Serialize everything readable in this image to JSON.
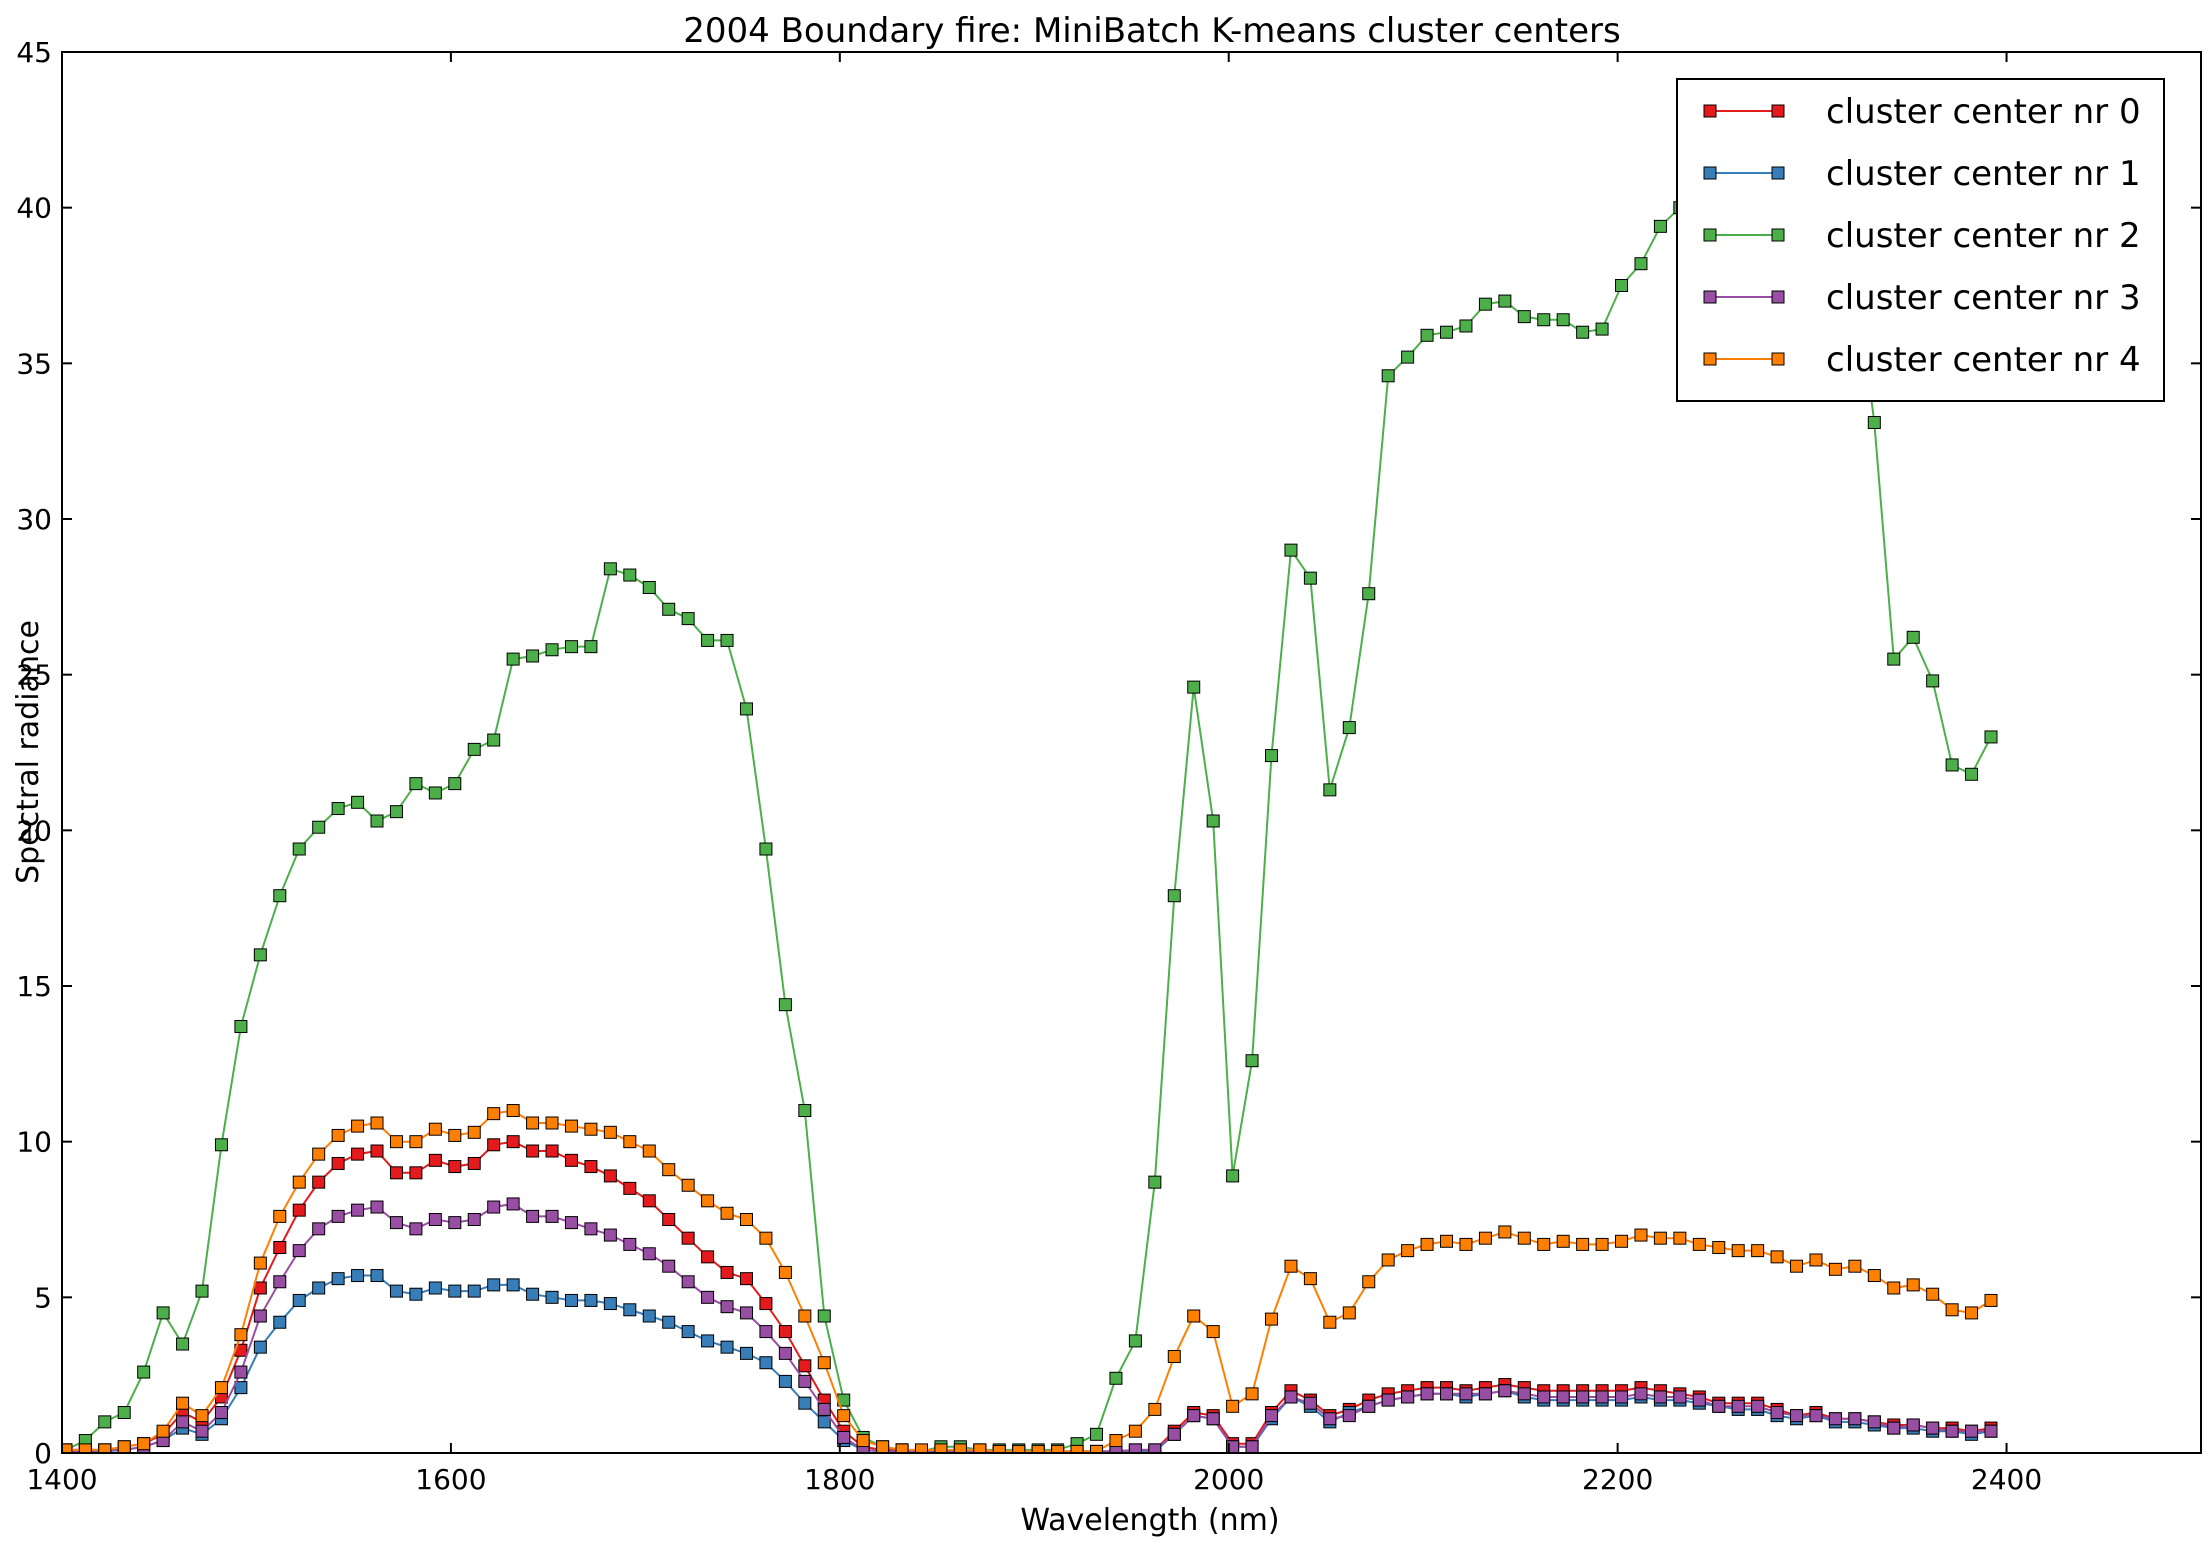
{
  "chart_data": {
    "type": "line",
    "title": "2004 Boundary fire: MiniBatch K-means cluster centers",
    "xlabel": "Wavelength (nm)",
    "ylabel": "Spectral radiance",
    "xlim": [
      1400,
      2500
    ],
    "ylim": [
      0,
      45
    ],
    "xticks": [
      "1400",
      "1600",
      "1800",
      "2000",
      "2200",
      "2400"
    ],
    "yticks": [
      "0",
      "5",
      "10",
      "15",
      "20",
      "25",
      "30",
      "35",
      "40",
      "45"
    ],
    "grid": false,
    "legend_position": "top-right",
    "marker": "square",
    "x": [
      1402,
      1412,
      1422,
      1432,
      1442,
      1452,
      1462,
      1472,
      1482,
      1492,
      1502,
      1512,
      1522,
      1532,
      1542,
      1552,
      1562,
      1572,
      1582,
      1592,
      1602,
      1612,
      1622,
      1632,
      1642,
      1652,
      1662,
      1672,
      1682,
      1692,
      1702,
      1712,
      1722,
      1732,
      1742,
      1752,
      1762,
      1772,
      1782,
      1792,
      1802,
      1812,
      1822,
      1832,
      1842,
      1852,
      1862,
      1872,
      1882,
      1892,
      1902,
      1912,
      1922,
      1932,
      1942,
      1952,
      1962,
      1972,
      1982,
      1992,
      2002,
      2012,
      2022,
      2032,
      2042,
      2052,
      2062,
      2072,
      2082,
      2092,
      2102,
      2112,
      2122,
      2132,
      2142,
      2152,
      2162,
      2172,
      2182,
      2192,
      2202,
      2212,
      2222,
      2232,
      2242,
      2252,
      2262,
      2272,
      2282,
      2292,
      2302,
      2312,
      2322,
      2332,
      2342,
      2352,
      2362,
      2372,
      2382,
      2392
    ],
    "series": [
      {
        "name": "cluster center nr 0",
        "color": "#e41a1c",
        "values": [
          0.1,
          0.1,
          0.1,
          0.2,
          0.3,
          0.6,
          1.3,
          1.0,
          1.8,
          3.3,
          5.3,
          6.6,
          7.8,
          8.7,
          9.3,
          9.6,
          9.7,
          9.0,
          9.0,
          9.4,
          9.2,
          9.3,
          9.9,
          10.0,
          9.7,
          9.7,
          9.4,
          9.2,
          8.9,
          8.5,
          8.1,
          7.5,
          6.9,
          6.3,
          5.8,
          5.6,
          4.8,
          3.9,
          2.8,
          1.7,
          0.7,
          0.2,
          0.1,
          0.1,
          0.05,
          0.05,
          0.05,
          0.05,
          0.05,
          0.05,
          0.05,
          0.05,
          0.05,
          0.05,
          0.05,
          0.1,
          0.1,
          0.7,
          1.3,
          1.2,
          0.3,
          0.3,
          1.3,
          2.0,
          1.7,
          1.2,
          1.4,
          1.7,
          1.9,
          2.0,
          2.1,
          2.1,
          2.0,
          2.1,
          2.2,
          2.1,
          2.0,
          2.0,
          2.0,
          2.0,
          2.0,
          2.1,
          2.0,
          1.9,
          1.8,
          1.6,
          1.6,
          1.6,
          1.4,
          1.2,
          1.3,
          1.1,
          1.1,
          1.0,
          0.9,
          0.9,
          0.8,
          0.8,
          0.7,
          0.8
        ]
      },
      {
        "name": "cluster center nr 1",
        "color": "#377eb8",
        "values": [
          0.0,
          0.0,
          0.05,
          0.1,
          0.2,
          0.4,
          0.8,
          0.6,
          1.1,
          2.1,
          3.4,
          4.2,
          4.9,
          5.3,
          5.6,
          5.7,
          5.7,
          5.2,
          5.1,
          5.3,
          5.2,
          5.2,
          5.4,
          5.4,
          5.1,
          5.0,
          4.9,
          4.9,
          4.8,
          4.6,
          4.4,
          4.2,
          3.9,
          3.6,
          3.4,
          3.2,
          2.9,
          2.3,
          1.6,
          1.0,
          0.4,
          0.1,
          0.05,
          0.05,
          0.05,
          0.05,
          0.05,
          0.05,
          0.05,
          0.05,
          0.05,
          0.05,
          0.05,
          0.05,
          0.05,
          0.05,
          0.05,
          0.6,
          1.2,
          1.1,
          0.2,
          0.2,
          1.1,
          1.8,
          1.5,
          1.0,
          1.3,
          1.5,
          1.7,
          1.8,
          1.9,
          1.9,
          1.8,
          1.9,
          2.0,
          1.8,
          1.7,
          1.7,
          1.7,
          1.7,
          1.7,
          1.8,
          1.7,
          1.7,
          1.6,
          1.5,
          1.4,
          1.4,
          1.2,
          1.1,
          1.2,
          1.0,
          1.0,
          0.9,
          0.8,
          0.8,
          0.7,
          0.7,
          0.6,
          0.7
        ]
      },
      {
        "name": "cluster center nr 2",
        "color": "#4daf4a",
        "values": [
          0.1,
          0.4,
          1.0,
          1.3,
          2.6,
          4.5,
          3.5,
          5.2,
          9.9,
          13.7,
          16.0,
          17.9,
          19.4,
          20.1,
          20.7,
          20.9,
          20.3,
          20.6,
          21.5,
          21.2,
          21.5,
          22.6,
          22.9,
          25.5,
          25.6,
          25.8,
          25.9,
          25.9,
          28.4,
          28.2,
          27.8,
          27.1,
          26.8,
          26.1,
          26.1,
          23.9,
          19.4,
          14.4,
          11.0,
          4.4,
          1.7,
          0.5,
          0.2,
          0.1,
          0.05,
          0.2,
          0.2,
          0.1,
          0.1,
          0.1,
          0.1,
          0.1,
          0.3,
          0.6,
          2.4,
          3.6,
          8.7,
          17.9,
          24.6,
          20.3,
          8.9,
          12.6,
          22.4,
          29.0,
          28.1,
          21.3,
          23.3,
          27.6,
          34.6,
          35.2,
          35.9,
          36.0,
          36.2,
          36.9,
          37.0,
          36.5,
          36.4,
          36.4,
          36.0,
          36.1,
          37.5,
          38.2,
          39.4,
          40.0,
          40.4,
          40.6,
          40.8,
          41.0,
          40.6,
          40.2,
          39.6,
          38.8,
          38.0,
          33.1,
          25.5,
          26.2,
          24.8,
          22.1,
          21.8,
          23.0
        ]
      },
      {
        "name": "cluster center nr 3",
        "color": "#984ea3",
        "values": [
          0.05,
          0.05,
          0.1,
          0.1,
          0.2,
          0.4,
          1.0,
          0.7,
          1.3,
          2.6,
          4.4,
          5.5,
          6.5,
          7.2,
          7.6,
          7.8,
          7.9,
          7.4,
          7.2,
          7.5,
          7.4,
          7.5,
          7.9,
          8.0,
          7.6,
          7.6,
          7.4,
          7.2,
          7.0,
          6.7,
          6.4,
          6.0,
          5.5,
          5.0,
          4.7,
          4.5,
          3.9,
          3.2,
          2.3,
          1.4,
          0.5,
          0.1,
          0.05,
          0.05,
          0.05,
          0.05,
          0.05,
          0.05,
          0.05,
          0.05,
          0.05,
          0.05,
          0.05,
          0.05,
          0.05,
          0.1,
          0.1,
          0.6,
          1.2,
          1.1,
          0.2,
          0.2,
          1.2,
          1.8,
          1.6,
          1.1,
          1.2,
          1.5,
          1.7,
          1.8,
          1.9,
          1.9,
          1.9,
          1.9,
          2.0,
          1.9,
          1.8,
          1.8,
          1.8,
          1.8,
          1.8,
          1.9,
          1.8,
          1.8,
          1.7,
          1.5,
          1.5,
          1.5,
          1.3,
          1.2,
          1.2,
          1.1,
          1.1,
          1.0,
          0.8,
          0.9,
          0.8,
          0.7,
          0.7,
          0.7
        ]
      },
      {
        "name": "cluster center nr 4",
        "color": "#ff7f00",
        "values": [
          0.1,
          0.1,
          0.1,
          0.2,
          0.3,
          0.7,
          1.6,
          1.2,
          2.1,
          3.8,
          6.1,
          7.6,
          8.7,
          9.6,
          10.2,
          10.5,
          10.6,
          10.0,
          10.0,
          10.4,
          10.2,
          10.3,
          10.9,
          11.0,
          10.6,
          10.6,
          10.5,
          10.4,
          10.3,
          10.0,
          9.7,
          9.1,
          8.6,
          8.1,
          7.7,
          7.5,
          6.9,
          5.8,
          4.4,
          2.9,
          1.2,
          0.4,
          0.2,
          0.1,
          0.1,
          0.1,
          0.1,
          0.1,
          0.05,
          0.05,
          0.05,
          0.05,
          0.05,
          0.05,
          0.4,
          0.7,
          1.4,
          3.1,
          4.4,
          3.9,
          1.5,
          1.9,
          4.3,
          6.0,
          5.6,
          4.2,
          4.5,
          5.5,
          6.2,
          6.5,
          6.7,
          6.8,
          6.7,
          6.9,
          7.1,
          6.9,
          6.7,
          6.8,
          6.7,
          6.7,
          6.8,
          7.0,
          6.9,
          6.9,
          6.7,
          6.6,
          6.5,
          6.5,
          6.3,
          6.0,
          6.2,
          5.9,
          6.0,
          5.7,
          5.3,
          5.4,
          5.1,
          4.6,
          4.5,
          4.9
        ]
      }
    ]
  }
}
